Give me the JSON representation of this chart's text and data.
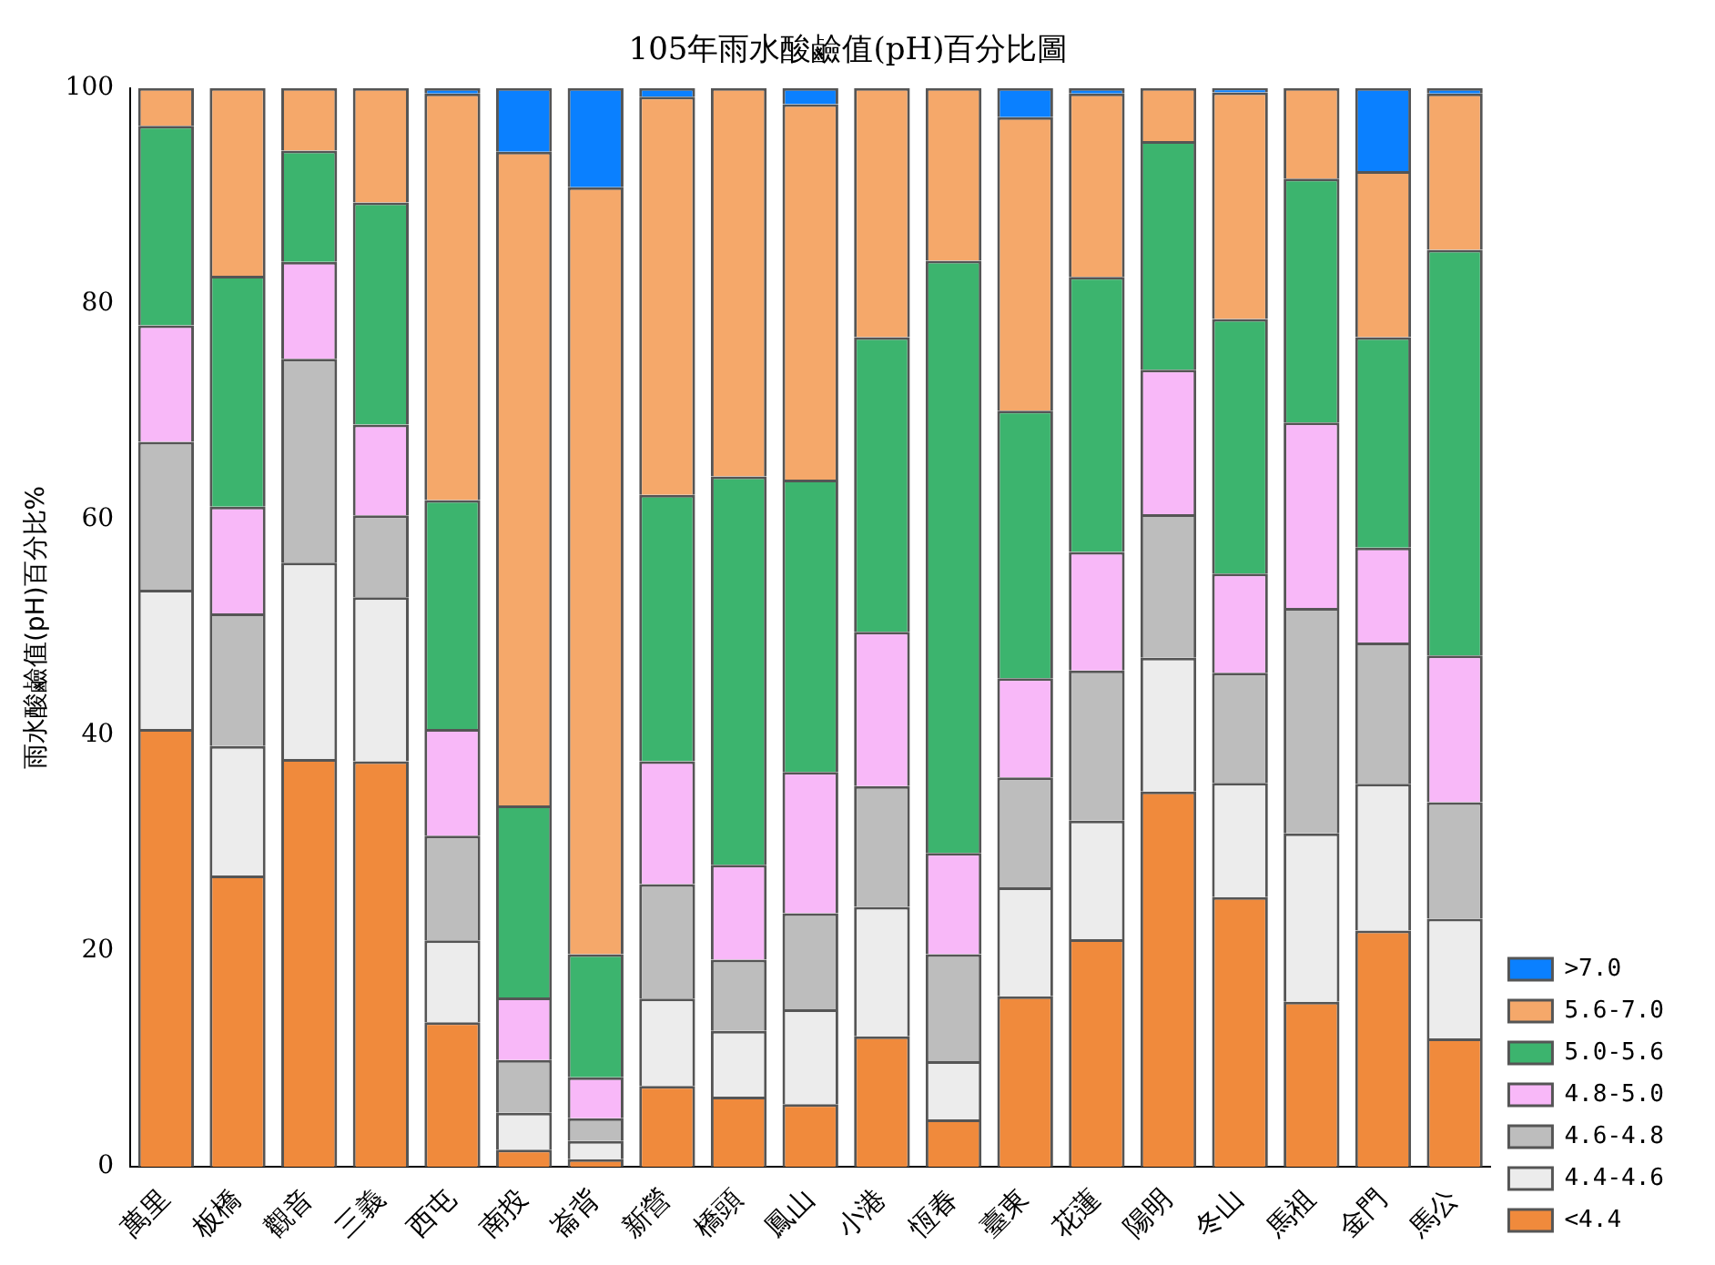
{
  "chart_data": {
    "type": "bar",
    "title": "105年雨水酸鹼值(pH)百分比圖",
    "ylabel": "雨水酸鹼值(pH)百分比%",
    "categories": [
      "萬里",
      "板橋",
      "觀音",
      "三義",
      "西屯",
      "南投",
      "崙背",
      "新營",
      "橋頭",
      "鳳山",
      "小港",
      "恆春",
      "臺東",
      "花蓮",
      "陽明",
      "冬山",
      "馬祖",
      "金門",
      "馬公"
    ],
    "stacked": true,
    "ylim": [
      0,
      100
    ],
    "yticks": [
      0,
      20,
      40,
      60,
      80,
      100
    ],
    "grid": false,
    "legend": "bottom right",
    "series": [
      {
        "name": "<4.4",
        "color": "#f08a3c",
        "values": [
          40.6,
          27,
          37.8,
          37.6,
          13.4,
          1.6,
          0.7,
          7.5,
          6.5,
          5.8,
          12.1,
          4.4,
          15.8,
          21.1,
          34.8,
          25,
          15.3,
          21.9,
          11.9
        ]
      },
      {
        "name": "4.4-4.6",
        "color": "#ececec",
        "values": [
          12.9,
          12,
          18.2,
          15.2,
          7.6,
          3.4,
          1.7,
          8.1,
          6.1,
          8.8,
          12,
          5.4,
          10.1,
          11,
          12.4,
          10.6,
          15.6,
          13.6,
          11.1
        ]
      },
      {
        "name": "4.6-4.8",
        "color": "#bdbdbd",
        "values": [
          13.7,
          12.3,
          18.9,
          7.6,
          9.7,
          4.9,
          2.1,
          10.6,
          6.6,
          8.9,
          11.2,
          9.9,
          10.2,
          13.9,
          13.3,
          10.2,
          20.9,
          13.1,
          10.8
        ]
      },
      {
        "name": "4.8-5.0",
        "color": "#f8b8f8",
        "values": [
          10.8,
          9.9,
          9,
          8.4,
          9.9,
          5.8,
          3.8,
          11.4,
          8.8,
          13.1,
          14.3,
          9.4,
          9.2,
          11,
          13.4,
          9.2,
          17.2,
          8.8,
          13.6
        ]
      },
      {
        "name": "5.0-5.6",
        "color": "#3cb46e",
        "values": [
          18.5,
          21.4,
          10.3,
          20.6,
          21.2,
          17.8,
          11.4,
          24.7,
          36,
          27.1,
          27.3,
          54.9,
          24.8,
          25.5,
          21.2,
          23.6,
          22.6,
          19.5,
          37.6
        ]
      },
      {
        "name": "5.6-7.0",
        "color": "#f5a86a",
        "values": [
          3.5,
          17.4,
          5.8,
          10.6,
          37.7,
          60.6,
          71.1,
          36.9,
          36,
          34.8,
          23.1,
          16,
          27.2,
          17,
          4.9,
          21,
          8.4,
          15.4,
          14.5
        ]
      },
      {
        "name": ">7.0",
        "color": "#0a80ff",
        "values": [
          0,
          0,
          0,
          0,
          0.5,
          5.9,
          9.2,
          0.8,
          0,
          1.5,
          0,
          0,
          2.7,
          0.5,
          0,
          0.4,
          0,
          7.7,
          0.5
        ]
      }
    ]
  }
}
